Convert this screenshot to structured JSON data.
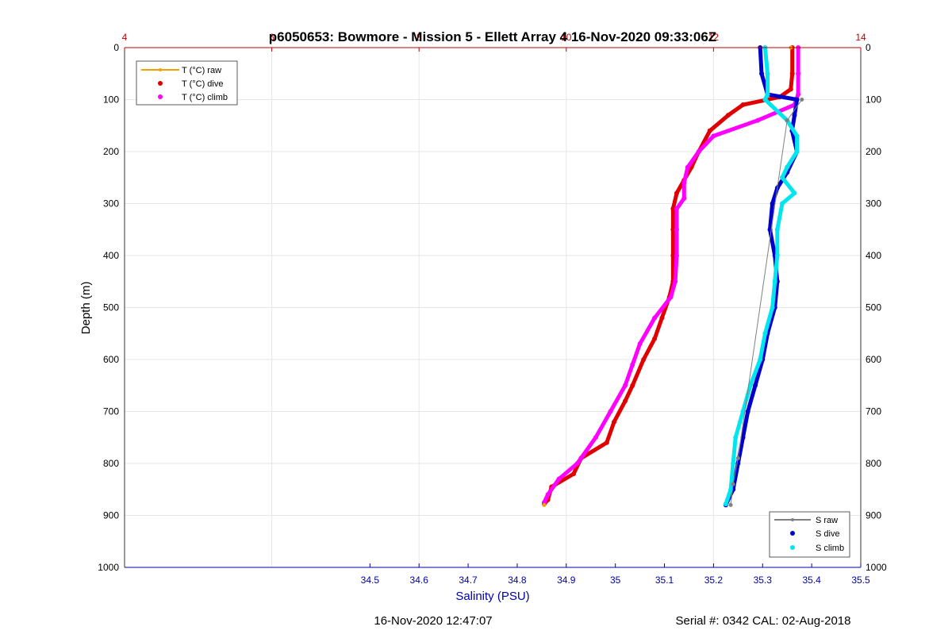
{
  "chart_data": {
    "type": "scatter",
    "title": "p6050653: Bowmore - Mission 5 - Ellett Array 4 16-Nov-2020 09:33:06Z",
    "ylabel": "Depth (m)",
    "xlabel": "Salinity (PSU)",
    "y_ticks": [
      "0",
      "100",
      "200",
      "300",
      "400",
      "500",
      "600",
      "700",
      "800",
      "900",
      "1000"
    ],
    "ylim": [
      0,
      1000
    ],
    "x_salinity_ticks": [
      "34.5",
      "34.6",
      "34.7",
      "34.8",
      "34.9",
      "35",
      "35.1",
      "35.2",
      "35.3",
      "35.4",
      "35.5"
    ],
    "x_salinity_range": [
      34.0,
      35.5
    ],
    "x_temp_ticks": [
      "4",
      "6",
      "8",
      "10",
      "12",
      "14"
    ],
    "x_temp_range": [
      4,
      14
    ],
    "grid": true,
    "legend_temp": {
      "placement": "top-left",
      "entries": [
        "T (°C) raw",
        "T (°C) dive",
        "T (°C) climb"
      ]
    },
    "legend_sal": {
      "placement": "bottom-right",
      "entries": [
        "S raw",
        "S dive",
        "S climb"
      ]
    },
    "series": [
      {
        "name": "T (°C) dive",
        "axis": "temperature",
        "color": "#e00000",
        "points": [
          [
            13.07,
            0
          ],
          [
            13.07,
            50
          ],
          [
            13.05,
            80
          ],
          [
            12.9,
            95
          ],
          [
            12.4,
            110
          ],
          [
            12.2,
            130
          ],
          [
            11.95,
            160
          ],
          [
            11.8,
            200
          ],
          [
            11.7,
            230
          ],
          [
            11.6,
            255
          ],
          [
            11.5,
            280
          ],
          [
            11.45,
            310
          ],
          [
            11.45,
            350
          ],
          [
            11.45,
            400
          ],
          [
            11.45,
            450
          ],
          [
            11.4,
            480
          ],
          [
            11.3,
            520
          ],
          [
            11.2,
            560
          ],
          [
            11.05,
            600
          ],
          [
            10.9,
            650
          ],
          [
            10.8,
            680
          ],
          [
            10.65,
            720
          ],
          [
            10.55,
            760
          ],
          [
            10.2,
            790
          ],
          [
            10.1,
            820
          ],
          [
            9.8,
            845
          ],
          [
            9.75,
            870
          ],
          [
            9.7,
            878
          ]
        ]
      },
      {
        "name": "T (°C) climb",
        "axis": "temperature",
        "color": "#ff00ff",
        "points": [
          [
            13.15,
            0
          ],
          [
            13.15,
            50
          ],
          [
            13.15,
            90
          ],
          [
            13.1,
            110
          ],
          [
            12.6,
            140
          ],
          [
            12.0,
            170
          ],
          [
            11.8,
            200
          ],
          [
            11.65,
            230
          ],
          [
            11.6,
            260
          ],
          [
            11.6,
            290
          ],
          [
            11.5,
            310
          ],
          [
            11.5,
            350
          ],
          [
            11.5,
            400
          ],
          [
            11.48,
            450
          ],
          [
            11.42,
            480
          ],
          [
            11.2,
            520
          ],
          [
            11.0,
            570
          ],
          [
            10.9,
            610
          ],
          [
            10.8,
            650
          ],
          [
            10.6,
            700
          ],
          [
            10.4,
            750
          ],
          [
            10.15,
            800
          ],
          [
            9.9,
            830
          ],
          [
            9.75,
            860
          ],
          [
            9.7,
            875
          ]
        ]
      },
      {
        "name": "T (°C) raw",
        "axis": "temperature",
        "color": "#f0a000",
        "points": [
          [
            13.05,
            0
          ],
          [
            9.7,
            880
          ]
        ]
      },
      {
        "name": "S dive",
        "axis": "salinity",
        "color": "#0000cc",
        "points": [
          [
            35.295,
            0
          ],
          [
            35.298,
            50
          ],
          [
            35.31,
            90
          ],
          [
            35.37,
            100
          ],
          [
            35.365,
            130
          ],
          [
            35.36,
            160
          ],
          [
            35.37,
            200
          ],
          [
            35.35,
            240
          ],
          [
            35.33,
            270
          ],
          [
            35.32,
            300
          ],
          [
            35.315,
            350
          ],
          [
            35.325,
            400
          ],
          [
            35.33,
            450
          ],
          [
            35.325,
            500
          ],
          [
            35.31,
            550
          ],
          [
            35.3,
            600
          ],
          [
            35.285,
            650
          ],
          [
            35.27,
            700
          ],
          [
            35.26,
            750
          ],
          [
            35.25,
            800
          ],
          [
            35.24,
            850
          ],
          [
            35.225,
            880
          ]
        ]
      },
      {
        "name": "S climb",
        "axis": "salinity",
        "color": "#00e5ee",
        "points": [
          [
            35.305,
            0
          ],
          [
            35.31,
            50
          ],
          [
            35.31,
            90
          ],
          [
            35.305,
            100
          ],
          [
            35.35,
            140
          ],
          [
            35.37,
            170
          ],
          [
            35.37,
            200
          ],
          [
            35.35,
            230
          ],
          [
            35.34,
            250
          ],
          [
            35.365,
            280
          ],
          [
            35.34,
            300
          ],
          [
            35.33,
            350
          ],
          [
            35.33,
            400
          ],
          [
            35.325,
            450
          ],
          [
            35.32,
            500
          ],
          [
            35.305,
            550
          ],
          [
            35.295,
            600
          ],
          [
            35.275,
            650
          ],
          [
            35.26,
            700
          ],
          [
            35.245,
            750
          ],
          [
            35.24,
            800
          ],
          [
            35.235,
            850
          ],
          [
            35.225,
            878
          ]
        ]
      },
      {
        "name": "S raw",
        "axis": "salinity",
        "color": "#808080",
        "points": [
          [
            35.38,
            100
          ],
          [
            35.35,
            140
          ],
          [
            35.25,
            790
          ],
          [
            35.24,
            840
          ],
          [
            35.235,
            880
          ]
        ]
      }
    ]
  },
  "footer": {
    "left": "16-Nov-2020 12:47:07",
    "right": "Serial #: 0342  CAL: 02-Aug-2018"
  }
}
